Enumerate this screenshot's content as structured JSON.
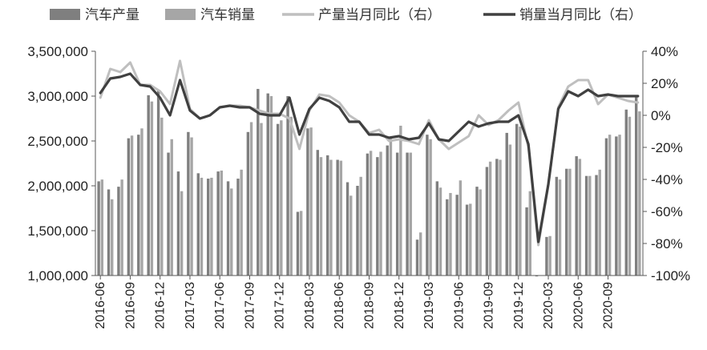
{
  "chart_data": {
    "type": "bar",
    "title": "",
    "xlabel": "",
    "ylabel": "",
    "ylim": [
      1000000,
      3500000
    ],
    "y2lim": [
      -100,
      40
    ],
    "yticks": [
      "1,000,000",
      "1,500,000",
      "2,000,000",
      "2,500,000",
      "3,000,000",
      "3,500,000"
    ],
    "y2ticks": [
      "-100%",
      "-80%",
      "-60%",
      "-40%",
      "-20%",
      "0%",
      "20%",
      "40%"
    ],
    "xtick_labels": [
      "2016-06",
      "2016-09",
      "2016-12",
      "2017-03",
      "2017-06",
      "2017-09",
      "2017-12",
      "2018-03",
      "2018-06",
      "2018-09",
      "2018-12",
      "2019-03",
      "2019-06",
      "2019-09",
      "2019-12",
      "2020-03",
      "2020-06",
      "2020-09"
    ],
    "grid": false,
    "legend_position": "top",
    "categories": [
      "2016-06",
      "2016-07",
      "2016-08",
      "2016-09",
      "2016-10",
      "2016-11",
      "2016-12",
      "2017-01",
      "2017-02",
      "2017-03",
      "2017-04",
      "2017-05",
      "2017-06",
      "2017-07",
      "2017-08",
      "2017-09",
      "2017-10",
      "2017-11",
      "2017-12",
      "2018-01",
      "2018-02",
      "2018-03",
      "2018-04",
      "2018-05",
      "2018-06",
      "2018-07",
      "2018-08",
      "2018-09",
      "2018-10",
      "2018-11",
      "2018-12",
      "2019-01",
      "2019-02",
      "2019-03",
      "2019-04",
      "2019-05",
      "2019-06",
      "2019-07",
      "2019-08",
      "2019-09",
      "2019-10",
      "2019-11",
      "2019-12",
      "2020-01",
      "2020-02",
      "2020-03",
      "2020-04",
      "2020-05",
      "2020-06",
      "2020-07",
      "2020-08",
      "2020-09",
      "2020-10",
      "2020-11",
      "2020-12"
    ],
    "series": [
      {
        "name": "汽车产量",
        "type": "bar",
        "axis": "left",
        "color": "#7f7f7f",
        "values": [
          2050000,
          1960000,
          1990000,
          2530000,
          2570000,
          3010000,
          3060000,
          2370000,
          2160000,
          2600000,
          2140000,
          2080000,
          2160000,
          2050000,
          2080000,
          2600000,
          3080000,
          3030000,
          2690000,
          3000000,
          1710000,
          2640000,
          2400000,
          2340000,
          2290000,
          2040000,
          2000000,
          2360000,
          2320000,
          2450000,
          2370000,
          2370000,
          1400000,
          2570000,
          2050000,
          1850000,
          1900000,
          1790000,
          1990000,
          2210000,
          2300000,
          2590000,
          2690000,
          1760000,
          990000,
          1430000,
          2100000,
          2190000,
          2330000,
          2110000,
          2120000,
          2530000,
          2550000,
          2850000,
          3000000
        ]
      },
      {
        "name": "汽车销量",
        "type": "bar",
        "axis": "left",
        "color": "#a6a6a6",
        "values": [
          2070000,
          1850000,
          2070000,
          2560000,
          2640000,
          2940000,
          2760000,
          2520000,
          1940000,
          2540000,
          2090000,
          2090000,
          2170000,
          1970000,
          2180000,
          2710000,
          2700000,
          3000000,
          2730000,
          2770000,
          1720000,
          2650000,
          2320000,
          2290000,
          2280000,
          1890000,
          2100000,
          2390000,
          2380000,
          2550000,
          2670000,
          2370000,
          1480000,
          2520000,
          1980000,
          1920000,
          2060000,
          1800000,
          1960000,
          2270000,
          2290000,
          2460000,
          2660000,
          1940000,
          1000000,
          1440000,
          2070000,
          2190000,
          2300000,
          2110000,
          2180000,
          2570000,
          2570000,
          2770000,
          2830000
        ]
      },
      {
        "name": "产量当月同比（右）",
        "type": "line",
        "axis": "right",
        "color": "#bfbfbf",
        "values": [
          11,
          29,
          27,
          33,
          19,
          19,
          15,
          7,
          34,
          4,
          -2,
          0,
          5,
          6,
          6,
          5,
          3,
          1,
          1,
          -2,
          -21,
          3,
          13,
          12,
          8,
          0,
          -4,
          -11,
          -9,
          -16,
          -15,
          -16,
          -18,
          -3,
          -15,
          -21,
          -17,
          -13,
          0,
          -6,
          -3,
          3,
          8,
          -20,
          -81,
          -44,
          5,
          18,
          22,
          22,
          7,
          13,
          11,
          9,
          8
        ]
      },
      {
        "name": "销量当月同比（右）",
        "type": "line",
        "axis": "right",
        "color": "#404040",
        "values": [
          14,
          23,
          24,
          26,
          19,
          18,
          11,
          0,
          22,
          3,
          -2,
          0,
          5,
          6,
          5,
          5,
          1,
          0,
          0,
          11,
          -12,
          4,
          11,
          9,
          5,
          -4,
          -4,
          -12,
          -12,
          -14,
          -13,
          -15,
          -14,
          -5,
          -15,
          -16,
          -10,
          -4,
          -7,
          -5,
          -4,
          -4,
          0,
          -18,
          -79,
          -43,
          4,
          15,
          12,
          16,
          12,
          13,
          12,
          12,
          12
        ]
      }
    ]
  }
}
